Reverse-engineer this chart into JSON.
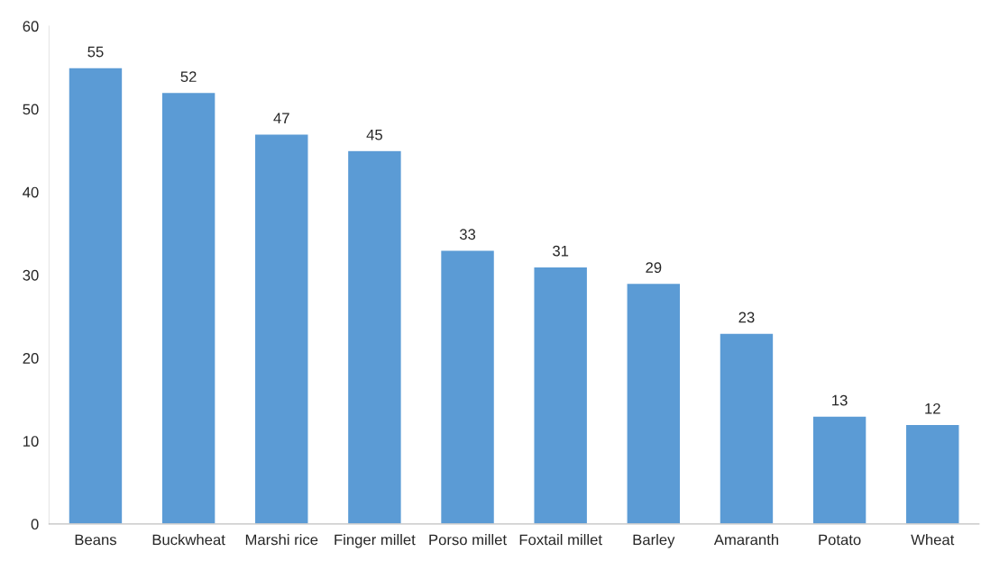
{
  "chart_data": {
    "type": "bar",
    "categories": [
      "Beans",
      "Buckwheat",
      "Marshi rice",
      "Finger millet",
      "Porso millet",
      "Foxtail millet",
      "Barley",
      "Amaranth",
      "Potato",
      "Wheat"
    ],
    "values": [
      55,
      52,
      47,
      45,
      33,
      31,
      29,
      23,
      13,
      12
    ],
    "color": "#5b9bd5",
    "ylim": [
      0,
      60
    ],
    "yticks": [
      0,
      10,
      20,
      30,
      40,
      50,
      60
    ],
    "data_labels": true,
    "grid": false,
    "legend": false
  }
}
